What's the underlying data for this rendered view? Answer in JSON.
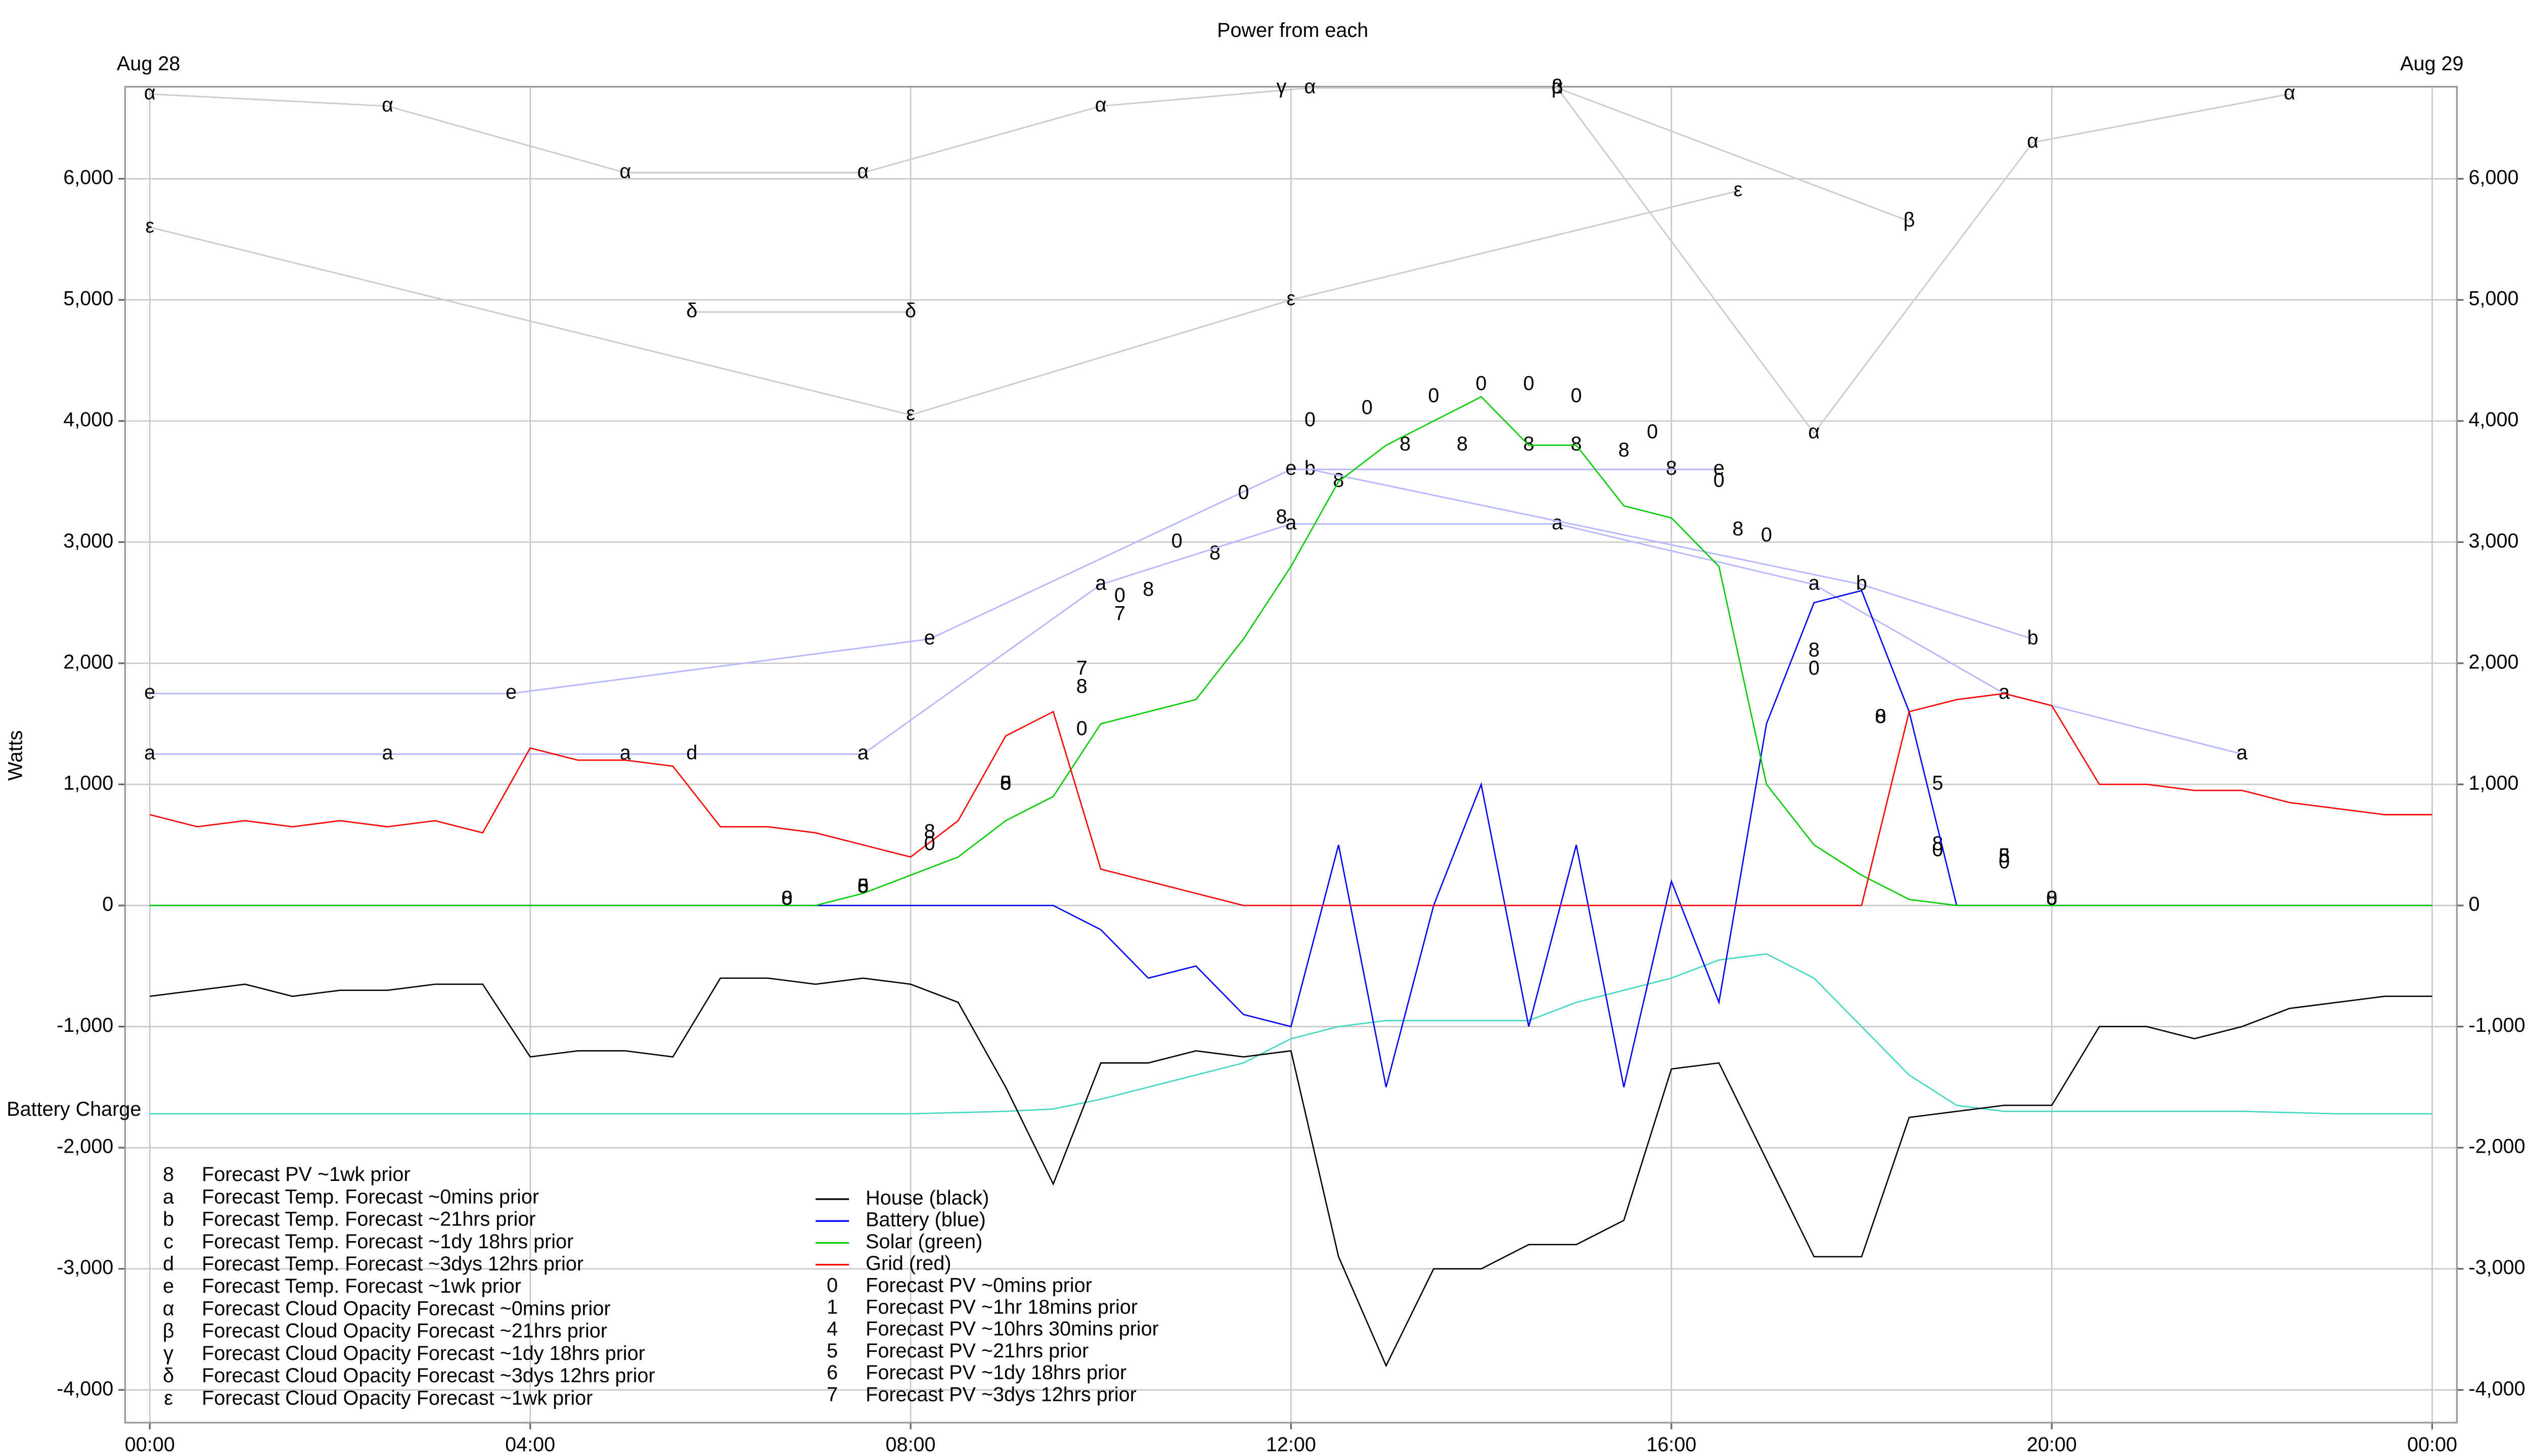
{
  "chart_data": {
    "type": "line",
    "title": "Power from each",
    "y_label": "Watts",
    "date_labels": [
      "Aug 28",
      "Aug 29"
    ],
    "grid": true,
    "xlim": [
      -0.26,
      24.26
    ],
    "ylim": [
      -4270,
      6760
    ],
    "xticks": [
      {
        "value": 0,
        "label": "00:00"
      },
      {
        "value": 4,
        "label": "04:00"
      },
      {
        "value": 8,
        "label": "08:00"
      },
      {
        "value": 12,
        "label": "12:00"
      },
      {
        "value": 16,
        "label": "16:00"
      },
      {
        "value": 20,
        "label": "20:00"
      },
      {
        "value": 24,
        "label": "00:00"
      }
    ],
    "yticks": [
      {
        "value": -4000,
        "label": "-4,000"
      },
      {
        "value": -3000,
        "label": "-3,000"
      },
      {
        "value": -2000,
        "label": "-2,000"
      },
      {
        "value": -1000,
        "label": "-1,000"
      },
      0,
      {
        "value": 1000,
        "label": "1,000"
      },
      {
        "value": 2000,
        "label": "2,000"
      },
      {
        "value": 3000,
        "label": "3,000"
      },
      {
        "value": 4000,
        "label": "4,000"
      },
      {
        "value": 5000,
        "label": "5,000"
      },
      {
        "value": 6000,
        "label": "6,000"
      }
    ],
    "x": [
      0,
      0.5,
      1,
      1.5,
      2,
      2.5,
      3,
      3.5,
      4,
      4.5,
      5,
      5.5,
      6,
      6.5,
      7,
      7.5,
      8,
      8.5,
      9,
      9.5,
      10,
      10.5,
      11,
      11.5,
      12,
      12.5,
      13,
      13.5,
      14,
      14.5,
      15,
      15.5,
      16,
      16.5,
      17,
      17.5,
      18,
      18.5,
      19,
      19.5,
      20,
      20.5,
      21,
      21.5,
      22,
      22.5,
      23,
      23.5,
      24
    ],
    "battery_charge": {
      "name": "Battery Charge",
      "color": "#40d8c0",
      "values": [
        -1720,
        -1720,
        -1720,
        -1720,
        -1720,
        -1720,
        -1720,
        -1720,
        -1720,
        -1720,
        -1720,
        -1720,
        -1720,
        -1720,
        -1720,
        -1720,
        -1720,
        -1710,
        -1700,
        -1680,
        -1600,
        -1500,
        -1400,
        -1300,
        -1100,
        -1000,
        -950,
        -950,
        -950,
        -950,
        -800,
        -700,
        -600,
        -450,
        -400,
        -600,
        -1000,
        -1400,
        -1650,
        -1700,
        -1700,
        -1700,
        -1700,
        -1700,
        -1700,
        -1710,
        -1720,
        -1720,
        -1720
      ]
    },
    "series": [
      {
        "name": "Forecast PV ~1wk prior",
        "symbol": "8",
        "line": false,
        "color": "#888888",
        "x": [
          6.7,
          7.5,
          8.2,
          9,
          9.8,
          10.5,
          11.2,
          11.9,
          12.5,
          13.2,
          13.8,
          14.5,
          15,
          15.5,
          16,
          16.7,
          17.5,
          18.2,
          18.8,
          19.5,
          20
        ],
        "values": [
          50,
          150,
          600,
          1000,
          1800,
          2600,
          2900,
          3200,
          3500,
          3800,
          3800,
          3800,
          3800,
          3750,
          3600,
          3100,
          2100,
          1550,
          500,
          400,
          50
        ]
      },
      {
        "name": "Forecast Temp. Forecast ~0mins prior",
        "symbol": "a",
        "line": true,
        "color": "#b8b8ff",
        "x": [
          0,
          2.5,
          5,
          7.5,
          10,
          12,
          14.8,
          17.5,
          19.5,
          22
        ],
        "values": [
          1250,
          1250,
          1250,
          1250,
          2650,
          3150,
          3150,
          2650,
          1750,
          1250
        ]
      },
      {
        "name": "Forecast Temp. Forecast ~21hrs prior",
        "symbol": "b",
        "line": true,
        "color": "#b8b8ff",
        "x": [
          12.2,
          18,
          19.8
        ],
        "values": [
          3600,
          2650,
          2200
        ]
      },
      {
        "name": "Forecast Temp. Forecast ~1dy 18hrs prior",
        "symbol": "c",
        "line": true,
        "color": "#b8b8ff",
        "x": [],
        "values": []
      },
      {
        "name": "Forecast Temp. Forecast ~3dys 12hrs prior",
        "symbol": "d",
        "line": true,
        "color": "#b8b8ff",
        "x": [
          5.7
        ],
        "values": [
          1250
        ]
      },
      {
        "name": "Forecast Temp. Forecast ~1wk prior",
        "symbol": "e",
        "line": true,
        "color": "#b8b8ff",
        "x": [
          0,
          3.8,
          8.2,
          12,
          16.5
        ],
        "values": [
          1750,
          1750,
          2200,
          3600,
          3600
        ]
      },
      {
        "name": "Forecast Cloud Opacity Forecast ~0mins prior",
        "symbol": "α",
        "line": true,
        "color": "#cccccc",
        "x": [
          0,
          2.5,
          5,
          7.5,
          10,
          12.2,
          14.8,
          17.5,
          19.8,
          22.5
        ],
        "values": [
          6700,
          6600,
          6050,
          6050,
          6600,
          6750,
          6750,
          3900,
          6300,
          6700
        ]
      },
      {
        "name": "Forecast Cloud Opacity Forecast ~21hrs prior",
        "symbol": "β",
        "line": true,
        "color": "#cccccc",
        "x": [
          14.8,
          18.5
        ],
        "values": [
          6750,
          5650
        ]
      },
      {
        "name": "Forecast Cloud Opacity Forecast ~1dy 18hrs prior",
        "symbol": "γ",
        "line": true,
        "color": "#cccccc",
        "x": [
          11.9
        ],
        "values": [
          6750
        ]
      },
      {
        "name": "Forecast Cloud Opacity Forecast ~3dys 12hrs prior",
        "symbol": "δ",
        "line": true,
        "color": "#cccccc",
        "x": [
          5.7,
          8
        ],
        "values": [
          4900,
          4900
        ]
      },
      {
        "name": "Forecast Cloud Opacity Forecast ~1wk prior",
        "symbol": "ε",
        "line": true,
        "color": "#cccccc",
        "x": [
          0,
          8,
          12,
          16.7
        ],
        "values": [
          5600,
          4050,
          5000,
          5900
        ]
      },
      {
        "name": "House (black)",
        "color": "#000000",
        "values": [
          -750,
          -700,
          -650,
          -750,
          -700,
          -700,
          -650,
          -650,
          -1250,
          -1200,
          -1200,
          -1250,
          -600,
          -600,
          -650,
          -600,
          -650,
          -800,
          -1500,
          -2300,
          -1300,
          -1300,
          -1200,
          -1250,
          -1200,
          -2900,
          -3800,
          -3000,
          -3000,
          -2800,
          -2800,
          -2600,
          -1350,
          -1300,
          -2100,
          -2900,
          -2900,
          -1750,
          -1700,
          -1650,
          -1650,
          -1000,
          -1000,
          -1100,
          -1000,
          -850,
          -800,
          -750,
          -750
        ]
      },
      {
        "name": "Battery (blue)",
        "color": "#0000ff",
        "values": [
          0,
          0,
          0,
          0,
          0,
          0,
          0,
          0,
          0,
          0,
          0,
          0,
          0,
          0,
          0,
          0,
          0,
          0,
          0,
          0,
          -200,
          -600,
          -500,
          -900,
          -1000,
          500,
          -1500,
          0,
          1000,
          -1000,
          500,
          -1500,
          200,
          -800,
          1500,
          2500,
          2600,
          1600,
          0,
          0,
          0,
          0,
          0,
          0,
          0,
          0,
          0,
          0,
          0
        ]
      },
      {
        "name": "Solar (green)",
        "color": "#00cc00",
        "values": [
          0,
          0,
          0,
          0,
          0,
          0,
          0,
          0,
          0,
          0,
          0,
          0,
          0,
          0,
          0,
          100,
          250,
          400,
          700,
          900,
          1500,
          1600,
          1700,
          2200,
          2800,
          3500,
          3800,
          4000,
          4200,
          3800,
          3800,
          3300,
          3200,
          2800,
          1000,
          500,
          250,
          50,
          0,
          0,
          0,
          0,
          0,
          0,
          0,
          0,
          0,
          0,
          0
        ]
      },
      {
        "name": "Grid (red)",
        "color": "#ff0000",
        "values": [
          750,
          650,
          700,
          650,
          700,
          650,
          700,
          600,
          1300,
          1200,
          1200,
          1150,
          650,
          650,
          600,
          500,
          400,
          700,
          1400,
          1600,
          300,
          200,
          100,
          0,
          0,
          0,
          0,
          0,
          0,
          0,
          0,
          0,
          0,
          0,
          0,
          0,
          0,
          1600,
          1700,
          1750,
          1650,
          1000,
          1000,
          950,
          950,
          850,
          800,
          750,
          750
        ]
      },
      {
        "name": "Forecast PV ~0mins prior",
        "symbol": "0",
        "line": false,
        "color": "#888888",
        "x": [
          6.7,
          7.5,
          8.2,
          9,
          9.8,
          10.2,
          10.8,
          11.5,
          12.2,
          12.8,
          13.5,
          14,
          14.5,
          15,
          15.8,
          16.5,
          17,
          17.5,
          18.2,
          18.8,
          19.5,
          20
        ],
        "values": [
          50,
          150,
          500,
          1000,
          1450,
          2550,
          3000,
          3400,
          4000,
          4100,
          4200,
          4300,
          4300,
          4200,
          3900,
          3500,
          3050,
          1950,
          1550,
          450,
          350,
          50
        ]
      },
      {
        "name": "Forecast PV ~1hr 18mins prior",
        "symbol": "1",
        "line": false,
        "color": "#888888",
        "x": [],
        "values": []
      },
      {
        "name": "Forecast PV ~10hrs 30mins prior",
        "symbol": "4",
        "line": false,
        "color": "#888888",
        "x": [],
        "values": []
      },
      {
        "name": "Forecast PV ~21hrs prior",
        "symbol": "5",
        "line": false,
        "color": "#888888",
        "x": [
          7.5,
          9,
          18.8,
          19.5
        ],
        "values": [
          150,
          1000,
          1000,
          400
        ]
      },
      {
        "name": "Forecast PV ~1dy 18hrs prior",
        "symbol": "6",
        "line": false,
        "color": "#888888",
        "x": [],
        "values": []
      },
      {
        "name": "Forecast PV ~3dys 12hrs prior",
        "symbol": "7",
        "line": false,
        "color": "#888888",
        "x": [
          9.8,
          10.2
        ],
        "values": [
          1950,
          2400
        ]
      }
    ]
  }
}
